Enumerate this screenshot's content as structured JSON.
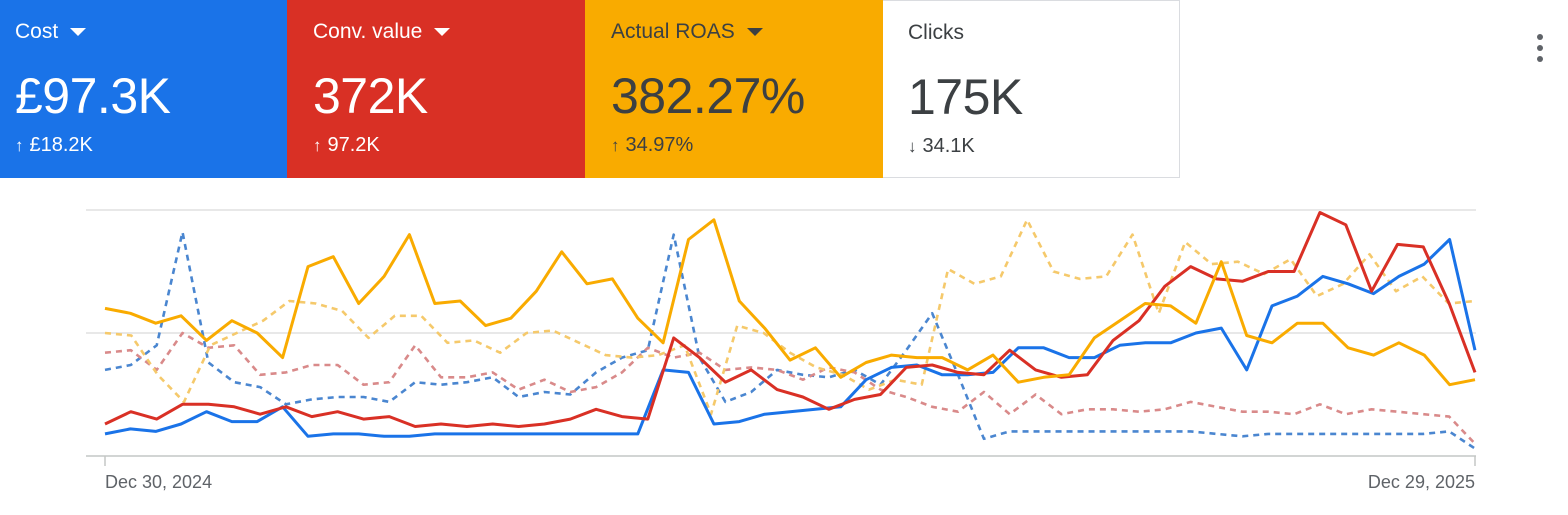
{
  "metrics": [
    {
      "label": "Cost",
      "value": "£97.3K",
      "change": "£18.2K",
      "direction": "up",
      "color": "#1a73e8",
      "text_color": "#ffffff",
      "has_dropdown": true
    },
    {
      "label": "Conv. value",
      "value": "372K",
      "change": "97.2K",
      "direction": "up",
      "color": "#d93025",
      "text_color": "#ffffff",
      "has_dropdown": true
    },
    {
      "label": "Actual ROAS",
      "value": "382.27%",
      "change": "34.97%",
      "direction": "up",
      "color": "#f9ab00",
      "text_color": "#3c4043",
      "has_dropdown": true
    },
    {
      "label": "Clicks",
      "value": "175K",
      "change": "34.1K",
      "direction": "down",
      "color": "#ffffff",
      "text_color": "#3c4043",
      "has_dropdown": false
    }
  ],
  "icons": {
    "up": "↑",
    "down": "↓",
    "more": "more-vert-icon"
  },
  "chart_data": {
    "type": "line",
    "x_start_label": "Dec 30, 2024",
    "x_end_label": "Dec 29, 2025",
    "ylim": [
      0,
      100
    ],
    "grid": true,
    "series": [
      {
        "color": "#1a73e8",
        "dashed": false,
        "values": [
          9,
          11,
          10,
          13,
          18,
          14,
          14,
          20,
          8,
          9,
          9,
          8,
          8,
          9,
          9,
          9,
          9,
          9,
          9,
          9,
          9,
          9,
          35,
          34,
          13,
          14,
          17,
          18,
          19,
          20,
          31,
          36,
          37,
          33,
          33,
          34,
          44,
          44,
          40,
          40,
          45,
          46,
          46,
          50,
          52,
          35,
          61,
          65,
          73,
          70,
          66,
          73,
          78,
          88,
          43
        ]
      },
      {
        "color": "#d93025",
        "dashed": false,
        "values": [
          13,
          18,
          15,
          21,
          21,
          20,
          17,
          20,
          16,
          18,
          15,
          16,
          12,
          13,
          12,
          13,
          12,
          13,
          15,
          19,
          16,
          15,
          48,
          40,
          30,
          35,
          27,
          24,
          19,
          23,
          25,
          36,
          37,
          34,
          33,
          43,
          35,
          32,
          33,
          47,
          55,
          69,
          77,
          72,
          71,
          75,
          75,
          99,
          94,
          67,
          86,
          85,
          62,
          34
        ]
      },
      {
        "color": "#f9ab00",
        "dashed": false,
        "values": [
          60,
          58,
          54,
          57,
          47,
          55,
          50,
          40,
          77,
          81,
          62,
          73,
          90,
          62,
          63,
          53,
          56,
          67,
          83,
          70,
          72,
          56,
          46,
          88,
          96,
          63,
          52,
          39,
          44,
          32,
          38,
          41,
          40,
          40,
          35,
          41,
          30,
          32,
          33,
          48,
          55,
          62,
          61,
          54,
          79,
          49,
          46,
          54,
          54,
          44,
          41,
          46,
          41,
          29,
          31
        ]
      },
      {
        "color": "#4a86d0",
        "dashed": true,
        "values": [
          35,
          37,
          45,
          91,
          38,
          30,
          28,
          21,
          23,
          24,
          24,
          22,
          30,
          29,
          30,
          32,
          24,
          26,
          25,
          34,
          40,
          43,
          90,
          40,
          22,
          26,
          35,
          33,
          32,
          35,
          29,
          43,
          58,
          33,
          7,
          10,
          10,
          10,
          10,
          10,
          10,
          10,
          10,
          9,
          8,
          9,
          9,
          9,
          9,
          9,
          9,
          9,
          10,
          3
        ]
      },
      {
        "color": "#d98a8a",
        "dashed": true,
        "values": [
          42,
          43,
          35,
          50,
          44,
          45,
          33,
          34,
          37,
          37,
          29,
          30,
          45,
          32,
          32,
          34,
          27,
          31,
          26,
          28,
          34,
          44,
          40,
          42,
          35,
          36,
          35,
          31,
          36,
          34,
          27,
          24,
          20,
          18,
          26,
          17,
          25,
          17,
          19,
          19,
          18,
          19,
          22,
          20,
          18,
          18,
          17,
          21,
          17,
          19,
          18,
          17,
          16,
          5
        ]
      },
      {
        "color": "#f5c96b",
        "dashed": true,
        "values": [
          50,
          49,
          33,
          22,
          45,
          50,
          55,
          63,
          62,
          59,
          48,
          57,
          57,
          46,
          47,
          42,
          50,
          51,
          46,
          41,
          40,
          41,
          45,
          17,
          53,
          50,
          42,
          36,
          33,
          27,
          31,
          29,
          76,
          70,
          73,
          96,
          75,
          72,
          73,
          90,
          58,
          87,
          78,
          79,
          74,
          80,
          65,
          70,
          82,
          67,
          73,
          62,
          63
        ]
      }
    ]
  }
}
